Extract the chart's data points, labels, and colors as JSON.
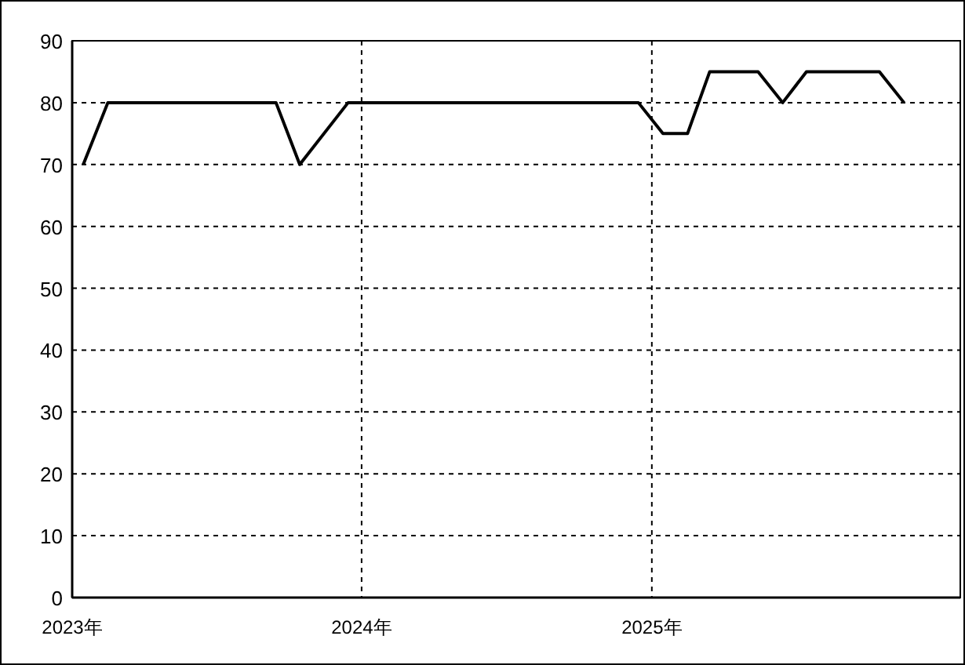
{
  "chart_data": {
    "type": "line",
    "x": [
      "2023-01-15",
      "2023-02-15",
      "2023-09-15",
      "2023-10-15",
      "2023-12-15",
      "2024-12-15",
      "2025-01-15",
      "2025-02-15",
      "2025-03-15",
      "2025-05-15",
      "2025-06-15",
      "2025-07-15",
      "2025-10-15",
      "2025-11-15"
    ],
    "series": [
      {
        "color": "#000000",
        "values": [
          70,
          80,
          80,
          70,
          80,
          80,
          75,
          75,
          85,
          85,
          80,
          85,
          85,
          80
        ]
      }
    ],
    "xlim": [
      "2023-01-01",
      "2026-01-25"
    ],
    "xticks": [
      {
        "value": "2023-01-01",
        "label": "2023年"
      },
      {
        "value": "2024-01-01",
        "label": "2024年"
      },
      {
        "value": "2025-01-01",
        "label": "2025年"
      }
    ],
    "ylim": [
      0,
      90
    ],
    "yticks": [
      0,
      10,
      20,
      30,
      40,
      50,
      60,
      70,
      80,
      90
    ],
    "grid": true
  }
}
